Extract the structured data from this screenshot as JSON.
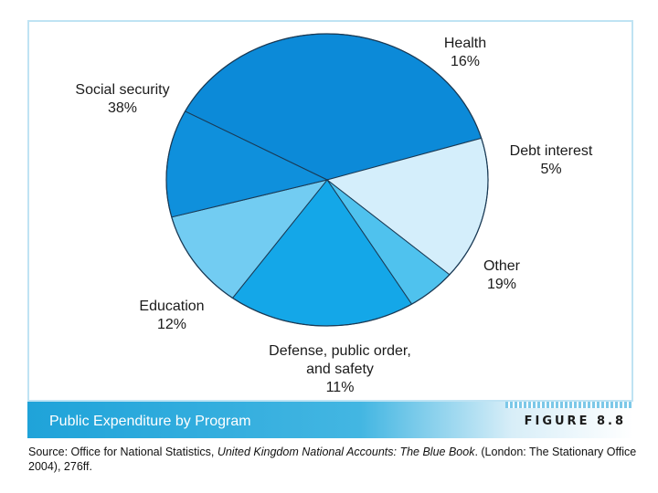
{
  "chart_data": {
    "type": "pie",
    "title": "Public Expenditure by Program",
    "slices": [
      {
        "label": "Social security",
        "label_lines": [
          "Social security"
        ],
        "value": 38,
        "value_text": "38%",
        "color": "#0c8ad8"
      },
      {
        "label": "Health",
        "label_lines": [
          "Health"
        ],
        "value": 16,
        "value_text": "16%",
        "color": "#d4eefb"
      },
      {
        "label": "Debt interest",
        "label_lines": [
          "Debt interest"
        ],
        "value": 5,
        "value_text": "5%",
        "color": "#4fc2ee"
      },
      {
        "label": "Other",
        "label_lines": [
          "Other"
        ],
        "value": 19,
        "value_text": "19%",
        "color": "#14a7e8"
      },
      {
        "label": "Defense, public order, and safety",
        "label_lines": [
          "Defense, public order,",
          "and safety"
        ],
        "value": 11,
        "value_text": "11%",
        "color": "#72ccf2"
      },
      {
        "label": "Education",
        "label_lines": [
          "Education"
        ],
        "value": 12,
        "value_text": "12%",
        "color": "#0f90dc"
      }
    ]
  },
  "caption": {
    "title": "Public Expenditure by Program",
    "figure": "FIGURE 8.8"
  },
  "source": {
    "prefix": "Source: Office for National Statistics, ",
    "book": "United Kingdom National Accounts: The Blue Book",
    "suffix": ". (London: The Stationary Office 2004), 276ff."
  }
}
